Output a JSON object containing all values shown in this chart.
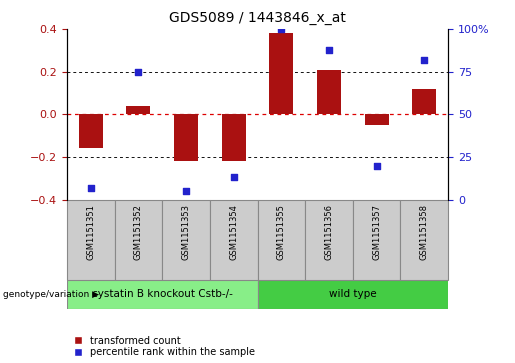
{
  "title": "GDS5089 / 1443846_x_at",
  "samples": [
    "GSM1151351",
    "GSM1151352",
    "GSM1151353",
    "GSM1151354",
    "GSM1151355",
    "GSM1151356",
    "GSM1151357",
    "GSM1151358"
  ],
  "red_bars": [
    -0.16,
    0.04,
    -0.22,
    -0.22,
    0.38,
    0.21,
    -0.05,
    0.12
  ],
  "blue_dots": [
    7,
    75,
    5,
    13,
    100,
    88,
    20,
    82
  ],
  "ylim_left": [
    -0.4,
    0.4
  ],
  "ylim_right": [
    0,
    100
  ],
  "yticks_left": [
    -0.4,
    -0.2,
    0.0,
    0.2,
    0.4
  ],
  "yticks_right": [
    0,
    25,
    50,
    75,
    100
  ],
  "yticklabels_right": [
    "0",
    "25",
    "50",
    "75",
    "100%"
  ],
  "group1_label": "cystatin B knockout Cstb-/-",
  "group2_label": "wild type",
  "group1_indices": [
    0,
    1,
    2,
    3
  ],
  "group2_indices": [
    4,
    5,
    6,
    7
  ],
  "group_row_label": "genotype/variation",
  "legend_red": "transformed count",
  "legend_blue": "percentile rank within the sample",
  "bar_color": "#aa1111",
  "dot_color": "#2222cc",
  "group1_color": "#88ee88",
  "group2_color": "#44cc44",
  "hline_color": "#dd0000",
  "grid_color": "#111111",
  "label_bg_color": "#cccccc",
  "title_fontsize": 10,
  "tick_fontsize": 8,
  "sample_fontsize": 6,
  "group_fontsize": 7.5,
  "legend_fontsize": 7
}
